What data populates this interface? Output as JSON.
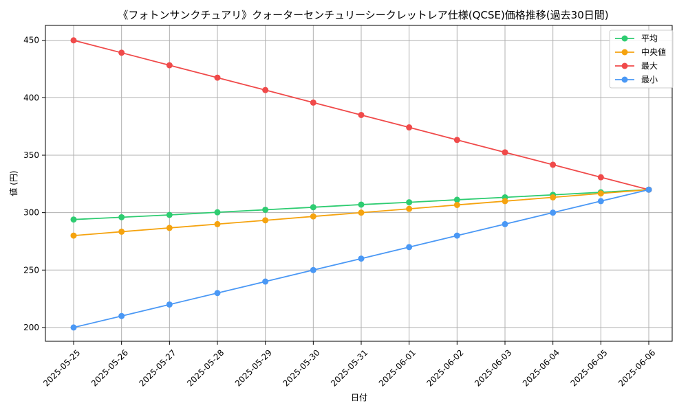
{
  "chart_data": {
    "type": "line",
    "title": "《フォトンサンクチュアリ》クォーターセンチュリーシークレットレア仕様(QCSE)価格推移(過去30日間)",
    "xlabel": "日付",
    "ylabel": "値 (円)",
    "categories": [
      "2025-05-25",
      "2025-05-26",
      "2025-05-27",
      "2025-05-28",
      "2025-05-29",
      "2025-05-30",
      "2025-05-31",
      "2025-06-01",
      "2025-06-02",
      "2025-06-03",
      "2025-06-04",
      "2025-06-05",
      "2025-06-06"
    ],
    "ylim": [
      188,
      463
    ],
    "yticks": [
      200,
      250,
      300,
      350,
      400,
      450
    ],
    "grid": true,
    "legend_position": "top-right",
    "series": [
      {
        "name": "平均",
        "color": "#2ecc71",
        "values": [
          294,
          296,
          298,
          300.3,
          302.5,
          304.7,
          307,
          309,
          311.2,
          313.3,
          315.5,
          317.7,
          320
        ]
      },
      {
        "name": "中央値",
        "color": "#f5a30f",
        "values": [
          280,
          283.4,
          286.7,
          290,
          293.3,
          296.7,
          300,
          303.3,
          306.7,
          310,
          313.3,
          316.7,
          320
        ]
      },
      {
        "name": "最大",
        "color": "#f04a4a",
        "values": [
          450,
          439.2,
          428.3,
          417.5,
          406.7,
          395.8,
          385,
          374.2,
          363.3,
          352.5,
          341.7,
          330.8,
          320
        ]
      },
      {
        "name": "最小",
        "color": "#4a98f5",
        "values": [
          200,
          210,
          220,
          230,
          240,
          250,
          260,
          270,
          280,
          290,
          300,
          310,
          320
        ]
      }
    ]
  }
}
